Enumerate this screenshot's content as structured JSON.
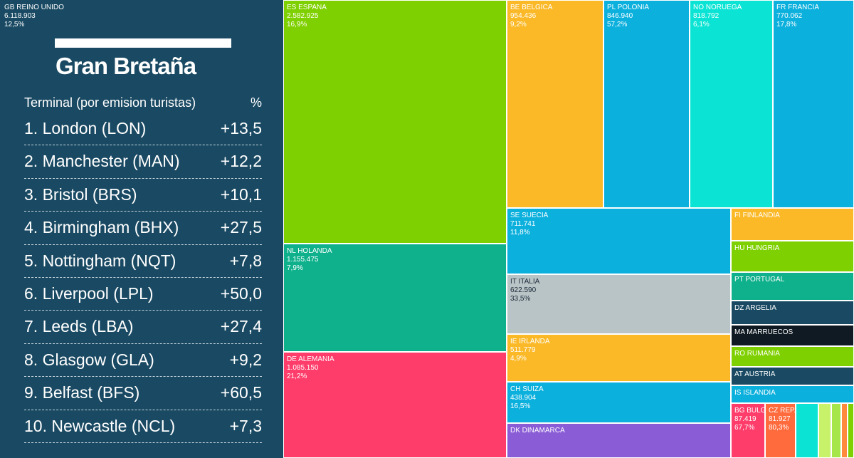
{
  "chart_data": {
    "type": "treemap",
    "colors": {
      "GB": "#1a4a63",
      "ES": "#7fd000",
      "NL": "#0fb18c",
      "DE": "#ff3d6b",
      "BE": "#fbb928",
      "PL": "#0cb0dd",
      "NO": "#0be4d4",
      "FR": "#0cb0dd",
      "SE": "#0cb0dd",
      "IT": "#b9c4c6",
      "IE": "#fbb928",
      "CH": "#0cb0dd",
      "DK": "#8a5cd6",
      "FI": "#fbb928",
      "HU": "#7fd000",
      "PT": "#0fb18c",
      "DZ": "#1a4a63",
      "MA": "#101a22",
      "RO": "#7fd000",
      "AT": "#1a4a63",
      "IS": "#0cb0dd",
      "BG": "#ff3d6b",
      "CZ": "#ff6b3d",
      "small": "#c8f26a"
    },
    "tiles": [
      {
        "code": "GB",
        "label": "GB REINO UNIDO",
        "value": "6.118.903",
        "pct": "12,5%"
      },
      {
        "code": "ES",
        "label": "ES ESPANA",
        "value": "2.582.925",
        "pct": "16,9%"
      },
      {
        "code": "NL",
        "label": "NL HOLANDA",
        "value": "1.155.475",
        "pct": "7,9%"
      },
      {
        "code": "DE",
        "label": "DE ALEMANIA",
        "value": "1.085.150",
        "pct": "21,2%"
      },
      {
        "code": "BE",
        "label": "BE BELGICA",
        "value": "954.436",
        "pct": "9,2%"
      },
      {
        "code": "PL",
        "label": "PL POLONIA",
        "value": "846.940",
        "pct": "57,2%"
      },
      {
        "code": "NO",
        "label": "NO NORUEGA",
        "value": "818.792",
        "pct": "6,1%"
      },
      {
        "code": "FR",
        "label": "FR FRANCIA",
        "value": "770.062",
        "pct": "17,8%"
      },
      {
        "code": "SE",
        "label": "SE SUECIA",
        "value": "711.741",
        "pct": "11,8%"
      },
      {
        "code": "IT",
        "label": "IT ITALIA",
        "value": "622.590",
        "pct": "33,5%"
      },
      {
        "code": "IE",
        "label": "IE IRLANDA",
        "value": "511.779",
        "pct": "4,9%"
      },
      {
        "code": "CH",
        "label": "CH SUIZA",
        "value": "438.904",
        "pct": "16,5%"
      },
      {
        "code": "DK",
        "label": "DK DINAMARCA",
        "value": "",
        "pct": ""
      },
      {
        "code": "FI",
        "label": "FI FINLANDIA",
        "value": "",
        "pct": ""
      },
      {
        "code": "HU",
        "label": "HU HUNGRIA",
        "value": "",
        "pct": ""
      },
      {
        "code": "PT",
        "label": "PT PORTUGAL",
        "value": "",
        "pct": ""
      },
      {
        "code": "DZ",
        "label": "DZ ARGELIA",
        "value": "",
        "pct": ""
      },
      {
        "code": "MA",
        "label": "MA MARRUECOS",
        "value": "",
        "pct": ""
      },
      {
        "code": "RO",
        "label": "RO RUMANIA",
        "value": "",
        "pct": ""
      },
      {
        "code": "AT",
        "label": "AT AUSTRIA",
        "value": "",
        "pct": ""
      },
      {
        "code": "IS",
        "label": "IS ISLANDIA",
        "value": "",
        "pct": ""
      },
      {
        "code": "BG",
        "label": "BG BULG...",
        "value": "87.419",
        "pct": "67,7%"
      },
      {
        "code": "CZ",
        "label": "CZ REP...",
        "value": "81.927",
        "pct": "80,3%"
      }
    ],
    "uk_breakdown": {
      "title": "Gran Bretaña",
      "column_label": "Terminal (por emision turistas)",
      "column_value": "%",
      "rows": [
        {
          "name": "1. London (LON)",
          "value": "+13,5"
        },
        {
          "name": "2. Manchester (MAN)",
          "value": "+12,2"
        },
        {
          "name": "3. Bristol (BRS)",
          "value": "+10,1"
        },
        {
          "name": "4. Birmingham (BHX)",
          "value": "+27,5"
        },
        {
          "name": "5. Nottingham (NQT)",
          "value": "+7,8"
        },
        {
          "name": "6. Liverpool (LPL)",
          "value": "+50,0"
        },
        {
          "name": "7. Leeds (LBA)",
          "value": "+27,4"
        },
        {
          "name": "8. Glasgow (GLA)",
          "value": "+9,2"
        },
        {
          "name": "9. Belfast (BFS)",
          "value": "+60,5"
        },
        {
          "name": "10. Newcastle (NCL)",
          "value": "+7,3"
        }
      ]
    }
  }
}
